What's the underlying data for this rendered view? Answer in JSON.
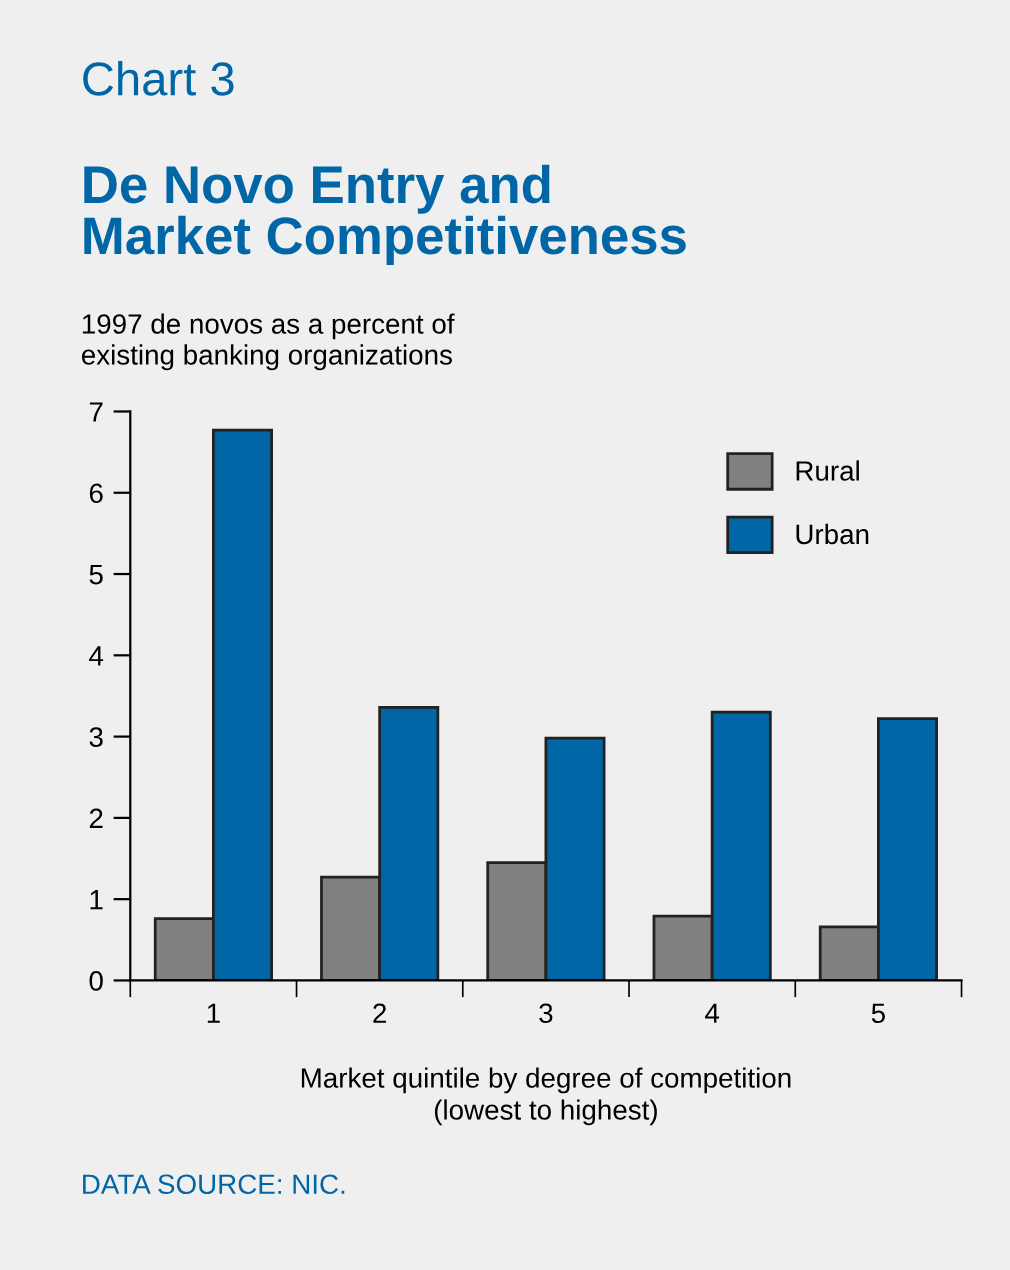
{
  "chart_data": {
    "type": "bar",
    "title": "Chart 3",
    "subtitle": "De Novo Entry and\nMarket Competitiveness",
    "ylabel": "1997 de novos as a percent of\nexisting banking organizations",
    "xlabel": "Market quintile by degree of competition\n(lowest to highest)",
    "annotations": [
      "DATA SOURCE: NIC."
    ],
    "categories": [
      "1",
      "2",
      "3",
      "4",
      "5"
    ],
    "series": [
      {
        "name": "Rural",
        "color": "#808080",
        "values": [
          0.76,
          1.27,
          1.45,
          0.79,
          0.66
        ]
      },
      {
        "name": "Urban",
        "color": "#0066a6",
        "values": [
          6.77,
          3.36,
          2.98,
          3.3,
          3.22
        ]
      }
    ],
    "ylim": [
      0,
      7
    ],
    "yticks": [
      0,
      1,
      2,
      3,
      4,
      5,
      6,
      7
    ],
    "grid": false,
    "legend": "top right"
  }
}
